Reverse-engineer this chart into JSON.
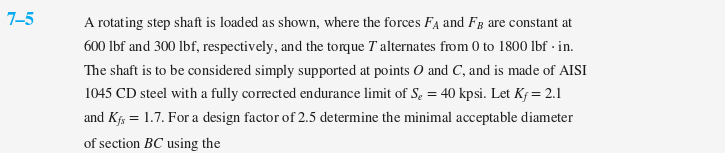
{
  "problem_number": "7–5",
  "problem_number_color": "#00AAEE",
  "background_color": "#f5f5f5",
  "inner_background": "#ffffff",
  "font_size_label": 13.5,
  "font_size_body": 10.5,
  "lines": [
    [
      "A rotating step shaft is loaded as shown, where the forces ",
      "F",
      "_A",
      " and ",
      "F",
      "_B",
      " are constant at"
    ],
    [
      "600 lbf and 300 lbf, respectively, and the torque ",
      "T",
      " alternates from 0 to 1800 lbf · in."
    ],
    [
      "The shaft is to be considered simply supported at points ",
      "O",
      " and ",
      "C",
      ", and is made of AISI"
    ],
    [
      "1045 CD steel with a fully corrected endurance limit of ",
      "S",
      "_e",
      " = 40 kpsi. Let ",
      "K",
      "_f",
      " = 2.1"
    ],
    [
      "and ",
      "K",
      "_fs",
      " = 1.7. For a design factor of 2.5 determine the minimal acceptable diameter"
    ],
    [
      "of section ",
      "BC",
      " using the"
    ]
  ],
  "text_color": "#1a1a1a",
  "figsize": [
    7.25,
    1.53
  ],
  "dpi": 100
}
